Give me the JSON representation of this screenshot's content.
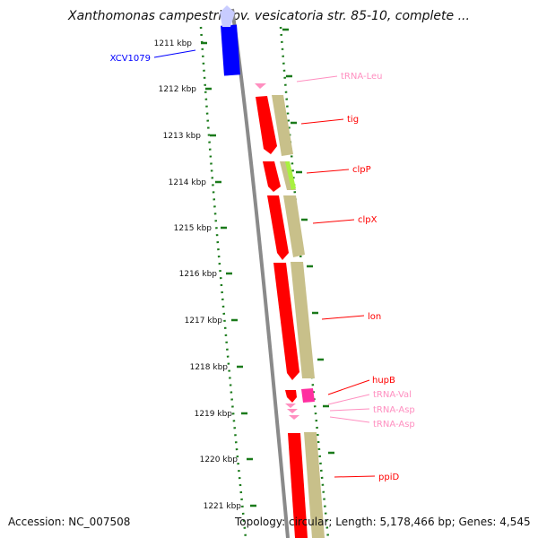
{
  "title": "Xanthomonas campestris pv. vesicatoria str. 85-10, complete ...",
  "accession": "Accession: NC_007508",
  "topology": "Topology: circular; Length: 5,178,466 bp; Genes: 4,545",
  "colors": {
    "gene_forward": "#ff0000",
    "gene_reverse": "#0000ff",
    "cds_band": "#c8c08a",
    "highlight_band": "#a8f040",
    "trna": "#ff8fc0",
    "hup": "#ff2fa0",
    "tick": "#1a7a1a",
    "backbone": "#8a8a8a"
  },
  "ticks": [
    {
      "label": "1211 kbp"
    },
    {
      "label": "1212 kbp"
    },
    {
      "label": "1213 kbp"
    },
    {
      "label": "1214 kbp"
    },
    {
      "label": "1215 kbp"
    },
    {
      "label": "1216 kbp"
    },
    {
      "label": "1217 kbp"
    },
    {
      "label": "1218 kbp"
    },
    {
      "label": "1219 kbp"
    },
    {
      "label": "1220 kbp"
    },
    {
      "label": "1221 kbp"
    }
  ],
  "features": [
    {
      "label": "XCV1079",
      "color": "#0000ff"
    },
    {
      "label": "tRNA-Leu",
      "color": "#ff8fc0"
    },
    {
      "label": "tig",
      "color": "#ff0000"
    },
    {
      "label": "clpP",
      "color": "#ff0000"
    },
    {
      "label": "clpX",
      "color": "#ff0000"
    },
    {
      "label": "lon",
      "color": "#ff0000"
    },
    {
      "label": "hupB",
      "color": "#ff0000"
    },
    {
      "label": "tRNA-Val",
      "color": "#ff8fc0"
    },
    {
      "label": "tRNA-Asp",
      "color": "#ff8fc0"
    },
    {
      "label": "tRNA-Asp",
      "color": "#ff8fc0"
    },
    {
      "label": "ppiD",
      "color": "#ff0000"
    }
  ]
}
